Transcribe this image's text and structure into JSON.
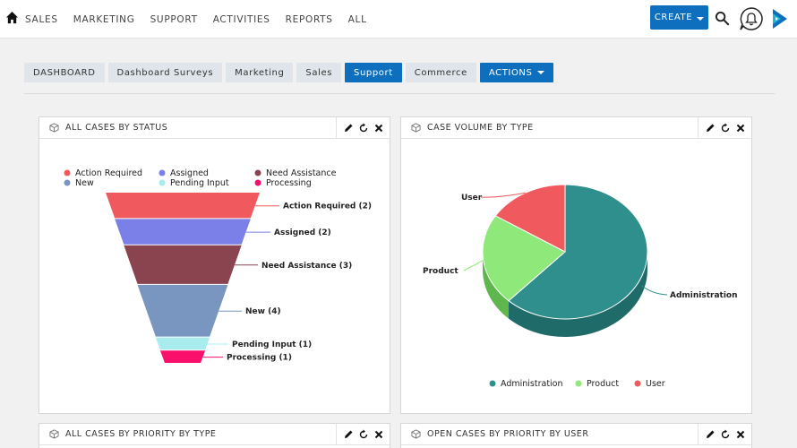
{
  "nav": {
    "items": [
      "SALES",
      "MARKETING",
      "SUPPORT",
      "ACTIVITIES",
      "REPORTS",
      "ALL"
    ],
    "create_label": "CREATE"
  },
  "tabs": [
    "DASHBOARD",
    "Dashboard Surveys",
    "Marketing",
    "Sales",
    "Support",
    "Commerce"
  ],
  "active_tab": "Support",
  "actions_label": "ACTIONS",
  "dashlets": {
    "funnel": {
      "title": "ALL CASES BY STATUS"
    },
    "pie": {
      "title": "CASE VOLUME BY TYPE"
    },
    "priority_type": {
      "title": "ALL CASES BY PRIORITY BY TYPE"
    },
    "priority_user": {
      "title": "OPEN CASES BY PRIORITY BY USER"
    }
  },
  "colors": {
    "accent": "#0d6fbe",
    "action_required": "#f05a5f",
    "assigned": "#7b7fe8",
    "need_assistance": "#8a4450",
    "new": "#7896bf",
    "pending_input": "#a8ecee",
    "processing": "#fa0f6b",
    "administration": "#2f8f8c",
    "product": "#8fe87a",
    "user": "#f05a5f"
  },
  "chart_data": [
    {
      "type": "funnel",
      "title": "",
      "legend": [
        "Action Required",
        "Assigned",
        "Need Assistance",
        "New",
        "Pending Input",
        "Processing"
      ],
      "series": [
        {
          "name": "Action Required",
          "value": 2,
          "label": "Action Required (2)"
        },
        {
          "name": "Assigned",
          "value": 2,
          "label": "Assigned (2)"
        },
        {
          "name": "Need Assistance",
          "value": 3,
          "label": "Need Assistance (3)"
        },
        {
          "name": "New",
          "value": 4,
          "label": "New (4)"
        },
        {
          "name": "Pending Input",
          "value": 1,
          "label": "Pending Input (1)"
        },
        {
          "name": "Processing",
          "value": 1,
          "label": "Processing (1)"
        }
      ]
    },
    {
      "type": "pie",
      "title": "",
      "legend": [
        "Administration",
        "Product",
        "User"
      ],
      "slices": [
        {
          "name": "Administration",
          "value": 62
        },
        {
          "name": "Product",
          "value": 22
        },
        {
          "name": "User",
          "value": 16
        }
      ]
    }
  ]
}
